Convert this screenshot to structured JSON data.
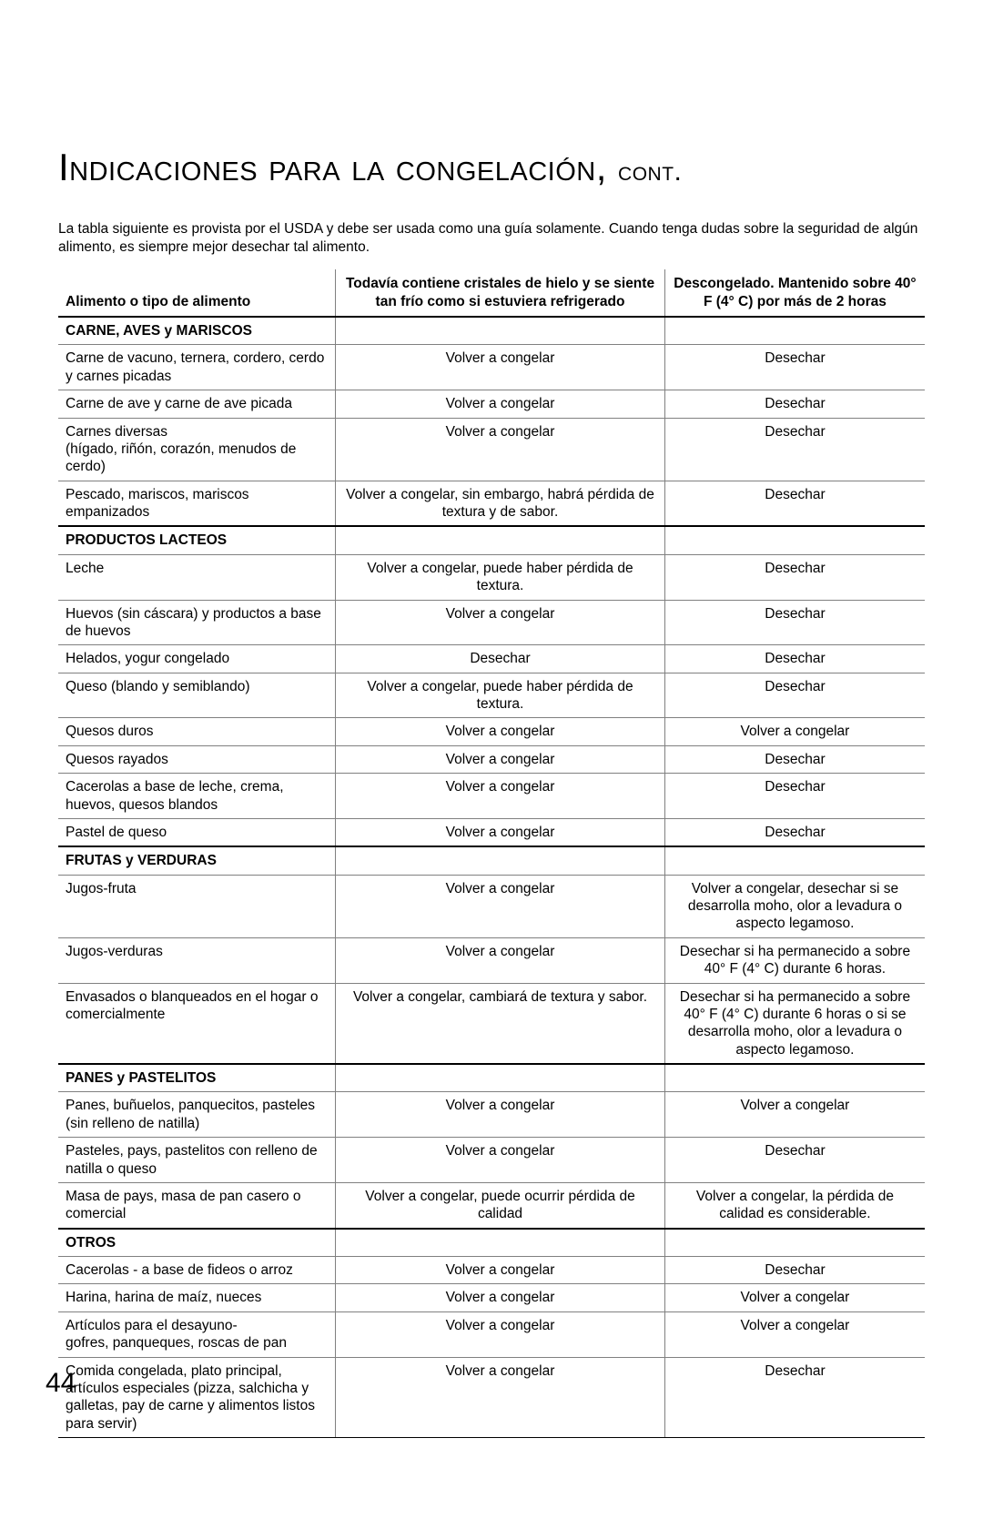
{
  "title_main": "Indicaciones para la congelación,",
  "title_cont": "cont.",
  "intro": "La tabla siguiente es provista por el USDA y debe ser usada como una guía solamente. Cuando tenga dudas sobre la seguridad de algún alimento, es siempre mejor desechar tal alimento.",
  "columns": {
    "food": "Alimento o tipo de alimento",
    "ice": "Todavía contiene cristales de hielo y se siente tan frío como si estuviera refrigerado",
    "thaw": "Descongelado. Mantenido sobre 40° F (4° C) por más de 2 horas"
  },
  "sections": [
    {
      "label": "CARNE, AVES y MARISCOS",
      "rows": [
        {
          "food": "Carne de vacuno, ternera, cordero, cerdo y carnes picadas",
          "ice": "Volver a congelar",
          "thaw": "Desechar"
        },
        {
          "food": "Carne de ave y carne de ave picada",
          "ice": "Volver a congelar",
          "thaw": "Desechar"
        },
        {
          "food": "Carnes diversas\n(hígado, riñón, corazón, menudos de cerdo)",
          "ice": "Volver a congelar",
          "thaw": "Desechar"
        },
        {
          "food": "Pescado, mariscos, mariscos empanizados",
          "ice": "Volver a congelar, sin embargo, habrá pérdida de textura y de sabor.",
          "thaw": "Desechar"
        }
      ]
    },
    {
      "label": "PRODUCTOS LACTEOS",
      "rows": [
        {
          "food": "Leche",
          "ice": "Volver a congelar, puede haber pérdida de textura.",
          "thaw": "Desechar"
        },
        {
          "food": "Huevos (sin cáscara) y productos a base de huevos",
          "ice": "Volver a congelar",
          "thaw": "Desechar"
        },
        {
          "food": "Helados, yogur congelado",
          "ice": "Desechar",
          "thaw": "Desechar"
        },
        {
          "food": "Queso (blando y semiblando)",
          "ice": "Volver a congelar, puede haber pérdida de textura.",
          "thaw": "Desechar"
        },
        {
          "food": "Quesos duros",
          "ice": "Volver a congelar",
          "thaw": "Volver a congelar"
        },
        {
          "food": "Quesos rayados",
          "ice": "Volver a congelar",
          "thaw": "Desechar"
        },
        {
          "food": "Cacerolas a base de leche, crema, huevos, quesos blandos",
          "ice": "Volver a congelar",
          "thaw": "Desechar"
        },
        {
          "food": "Pastel de queso",
          "ice": "Volver a congelar",
          "thaw": "Desechar"
        }
      ]
    },
    {
      "label": "FRUTAS y VERDURAS",
      "rows": [
        {
          "food": "Jugos-fruta",
          "ice": "Volver a congelar",
          "thaw": "Volver a congelar, desechar si se desarrolla moho, olor a levadura o aspecto legamoso."
        },
        {
          "food": "Jugos-verduras",
          "ice": "Volver a congelar",
          "thaw": "Desechar si ha permanecido a sobre 40° F (4° C) durante 6 horas."
        },
        {
          "food": "Envasados o blanqueados en el hogar o comercialmente",
          "ice": "Volver a congelar, cambiará de textura y sabor.",
          "thaw": "Desechar si ha permanecido a sobre 40° F (4° C) durante 6 horas o si se desarrolla moho, olor a levadura o aspecto legamoso."
        }
      ]
    },
    {
      "label": "PANES y PASTELITOS",
      "rows": [
        {
          "food": "Panes, buñuelos, panquecitos, pasteles (sin relleno de natilla)",
          "ice": "Volver a congelar",
          "thaw": "Volver a congelar"
        },
        {
          "food": "Pasteles, pays, pastelitos con relleno de natilla o queso",
          "ice": "Volver a congelar",
          "thaw": "Desechar"
        },
        {
          "food": "Masa de pays, masa de pan casero o comercial",
          "ice": "Volver a congelar, puede ocurrir pérdida de calidad",
          "thaw": "Volver a congelar, la pérdida de calidad es considerable."
        }
      ]
    },
    {
      "label": "OTROS",
      "rows": [
        {
          "food": "Cacerolas - a base de fideos o arroz",
          "ice": "Volver a congelar",
          "thaw": "Desechar"
        },
        {
          "food": "Harina, harina de maíz, nueces",
          "ice": "Volver a congelar",
          "thaw": "Volver a congelar"
        },
        {
          "food": "Artículos para el desayuno-\ngofres, panqueques, roscas de pan",
          "ice": "Volver a congelar",
          "thaw": "Volver a congelar"
        },
        {
          "food": "Comida congelada, plato principal, artículos especiales (pizza, salchicha y galletas, pay de carne y alimentos listos para servir)",
          "ice": "Volver a congelar",
          "thaw": "Desechar"
        }
      ]
    }
  ],
  "page_number": "44"
}
